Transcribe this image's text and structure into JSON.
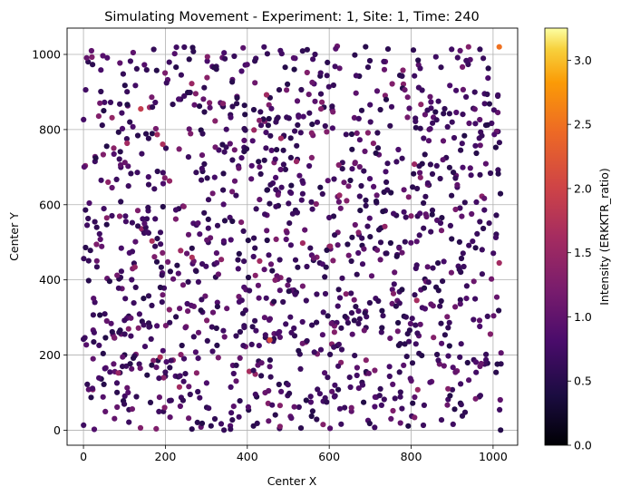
{
  "chart_data": {
    "type": "scatter",
    "title": "Simulating Movement - Experiment: 1, Site: 1, Time: 240",
    "xlabel": "Center X",
    "ylabel": "Center Y",
    "xlim": [
      -40,
      1060
    ],
    "ylim": [
      -40,
      1070
    ],
    "xticks": [
      0,
      200,
      400,
      600,
      800,
      1000
    ],
    "yticks": [
      0,
      200,
      400,
      600,
      800,
      1000
    ],
    "grid": true,
    "colormap": "inferno",
    "colorbar": {
      "label": "Intensity (ERKKTR_ratio)",
      "range": [
        0.0,
        3.25
      ],
      "ticks": [
        "0.0",
        "0.5",
        "1.0",
        "1.5",
        "2.0",
        "2.5",
        "3.0"
      ]
    },
    "point_count_estimate": 1300,
    "sample_points": [
      {
        "x": 1015,
        "y": 1020,
        "intensity": 2.5
      },
      {
        "x": 140,
        "y": 855,
        "intensity": 1.9
      },
      {
        "x": 455,
        "y": 240,
        "intensity": 2.1
      },
      {
        "x": 265,
        "y": 460,
        "intensity": 1.7
      },
      {
        "x": 430,
        "y": 450,
        "intensity": 1.6
      },
      {
        "x": 625,
        "y": 625,
        "intensity": 1.5
      },
      {
        "x": 520,
        "y": 715,
        "intensity": 1.5
      },
      {
        "x": 1015,
        "y": 445,
        "intensity": 1.6
      },
      {
        "x": 480,
        "y": 10,
        "intensity": 1.3
      },
      {
        "x": 585,
        "y": 15,
        "intensity": 1.3
      },
      {
        "x": 60,
        "y": 660,
        "intensity": 1.4
      },
      {
        "x": 245,
        "y": 595,
        "intensity": 1.3
      },
      {
        "x": 580,
        "y": 855,
        "intensity": 1.3
      },
      {
        "x": 940,
        "y": 1020,
        "intensity": 1.3
      },
      {
        "x": 800,
        "y": 570,
        "intensity": 1.3
      },
      {
        "x": 890,
        "y": 110,
        "intensity": 1.3
      }
    ]
  }
}
